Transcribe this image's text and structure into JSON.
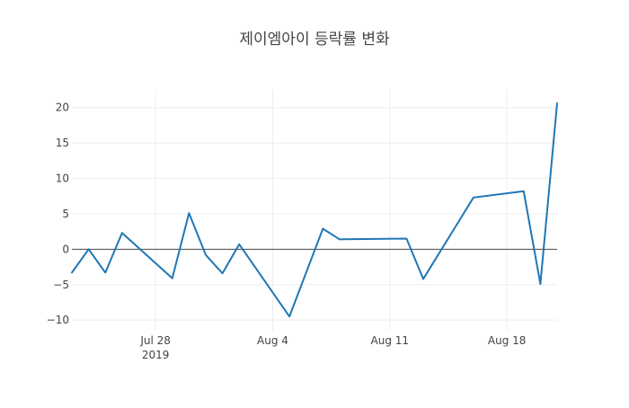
{
  "chart_data": {
    "type": "line",
    "title": "제이엠아이 등락률 변화",
    "xlabel": "",
    "ylabel": "",
    "x_axis": {
      "type": "date",
      "range": [
        "2019-07-23",
        "2019-08-21"
      ],
      "ticks": [
        {
          "date": "2019-07-28",
          "label": "Jul 28",
          "sublabel": "2019"
        },
        {
          "date": "2019-08-04",
          "label": "Aug 4",
          "sublabel": ""
        },
        {
          "date": "2019-08-11",
          "label": "Aug 11",
          "sublabel": ""
        },
        {
          "date": "2019-08-18",
          "label": "Aug 18",
          "sublabel": ""
        }
      ]
    },
    "y_axis": {
      "range": [
        -11.5,
        22.5
      ],
      "ticks": [
        {
          "value": 20,
          "label": "20"
        },
        {
          "value": 15,
          "label": "15"
        },
        {
          "value": 10,
          "label": "10"
        },
        {
          "value": 5,
          "label": "5"
        },
        {
          "value": 0,
          "label": "0"
        },
        {
          "value": -5,
          "label": "−5"
        },
        {
          "value": -10,
          "label": "−10"
        }
      ]
    },
    "grid": true,
    "legend": "none",
    "series": [
      {
        "color": "#1f77b4",
        "points": [
          {
            "x": "2019-07-23",
            "y": -3.3
          },
          {
            "x": "2019-07-24",
            "y": 0.0
          },
          {
            "x": "2019-07-25",
            "y": -3.3
          },
          {
            "x": "2019-07-26",
            "y": 2.3
          },
          {
            "x": "2019-07-29",
            "y": -4.1
          },
          {
            "x": "2019-07-30",
            "y": 5.1
          },
          {
            "x": "2019-07-31",
            "y": -0.8
          },
          {
            "x": "2019-08-01",
            "y": -3.4
          },
          {
            "x": "2019-08-02",
            "y": 0.7
          },
          {
            "x": "2019-08-05",
            "y": -9.5
          },
          {
            "x": "2019-08-07",
            "y": 2.9
          },
          {
            "x": "2019-08-08",
            "y": 1.4
          },
          {
            "x": "2019-08-12",
            "y": 1.5
          },
          {
            "x": "2019-08-13",
            "y": -4.2
          },
          {
            "x": "2019-08-16",
            "y": 7.3
          },
          {
            "x": "2019-08-19",
            "y": 8.2
          },
          {
            "x": "2019-08-20",
            "y": -4.9
          },
          {
            "x": "2019-08-21",
            "y": 20.6
          }
        ]
      }
    ]
  }
}
